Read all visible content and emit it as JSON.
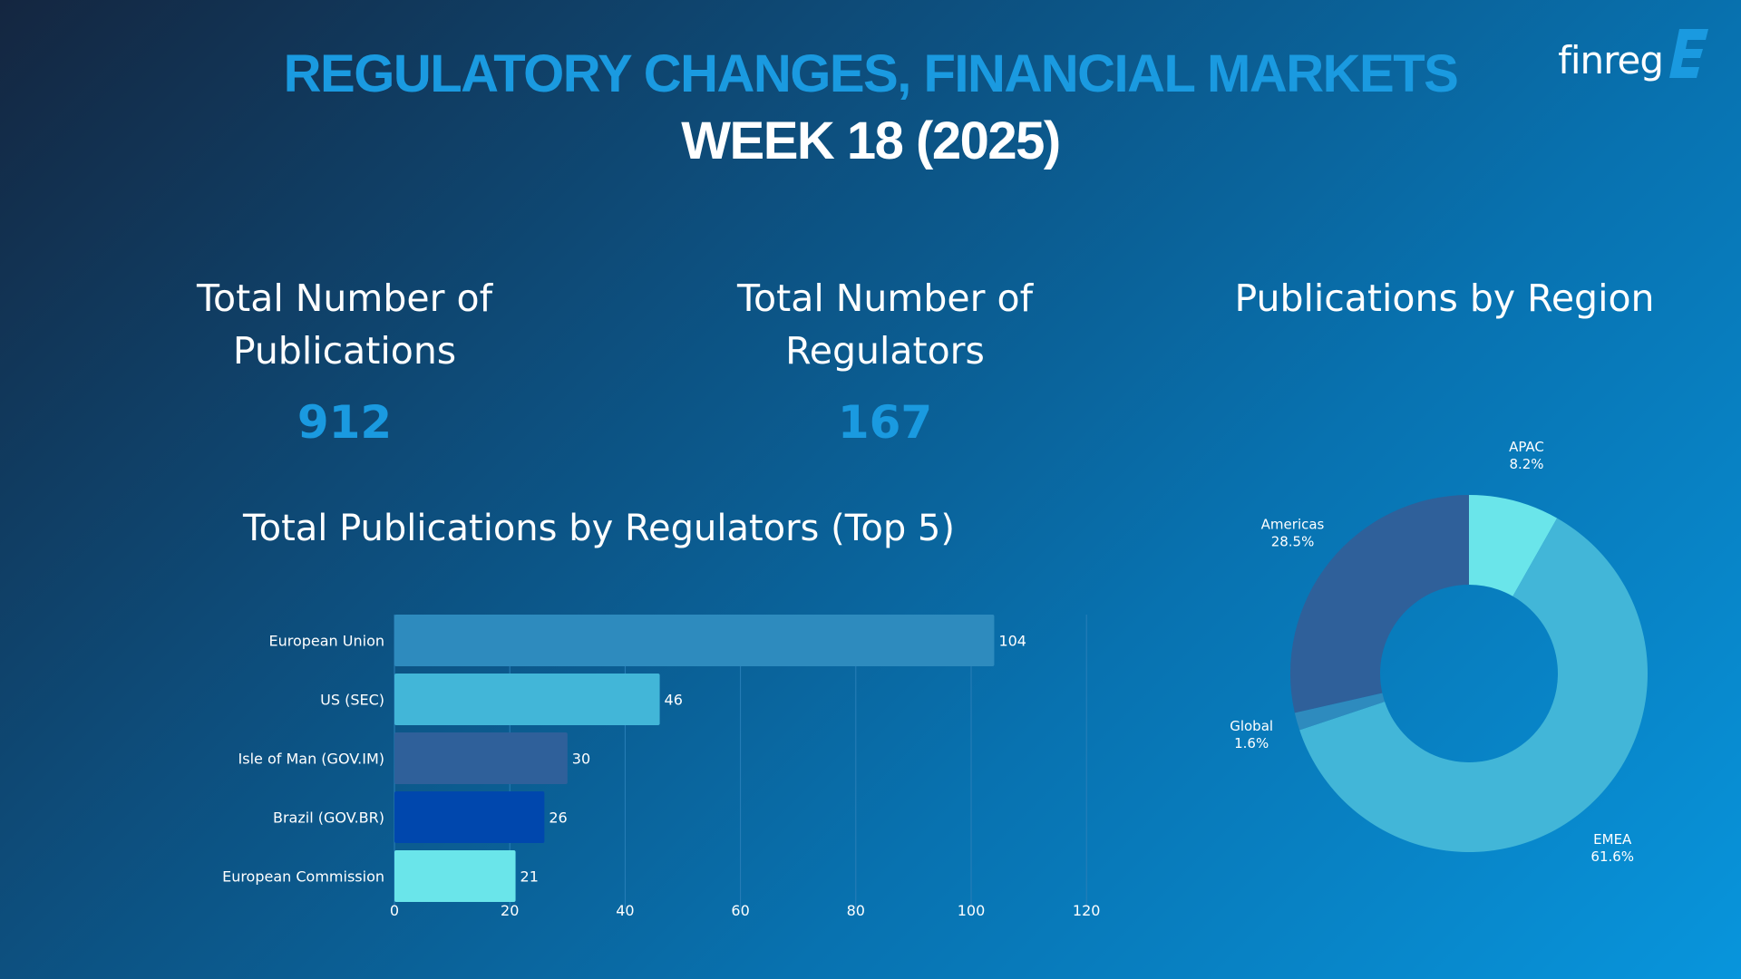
{
  "header": {
    "title": "REGULATORY CHANGES, FINANCIAL MARKETS",
    "subtitle": "WEEK 18 (2025)",
    "logo": "finreg"
  },
  "kpis": {
    "publications_label": "Total Number of Publications",
    "publications_value": "912",
    "regulators_label": "Total Number of Regulators",
    "regulators_value": "167",
    "region_label": "Publications by Region"
  },
  "colors": {
    "accent": "#1a9ae0",
    "grid": "#2a7fb8"
  },
  "chart_data": [
    {
      "type": "bar",
      "orientation": "horizontal",
      "title": "Total Publications by Regulators (Top 5)",
      "categories": [
        "European Union",
        "US (SEC)",
        "Isle of Man (GOV.IM)",
        "Brazil (GOV.BR)",
        "European Commission"
      ],
      "values": [
        104,
        46,
        30,
        26,
        21
      ],
      "colors": [
        "#2e8bbe",
        "#42b6d8",
        "#2f609a",
        "#0047ad",
        "#6ae5ea"
      ],
      "xlim": [
        0,
        120
      ],
      "xticks": [
        0,
        20,
        40,
        60,
        80,
        100,
        120
      ],
      "grid": true
    },
    {
      "type": "pie",
      "donut": true,
      "title": "Publications by Region",
      "slices": [
        {
          "label": "APAC",
          "value": 8.2,
          "pct": "8.2%",
          "color": "#6ae5ea"
        },
        {
          "label": "EMEA",
          "value": 61.6,
          "pct": "61.6%",
          "color": "#42b6d8"
        },
        {
          "label": "Global",
          "value": 1.6,
          "pct": "1.6%",
          "color": "#2e8bbe"
        },
        {
          "label": "Americas",
          "value": 28.5,
          "pct": "28.5%",
          "color": "#2f609a"
        }
      ]
    }
  ]
}
